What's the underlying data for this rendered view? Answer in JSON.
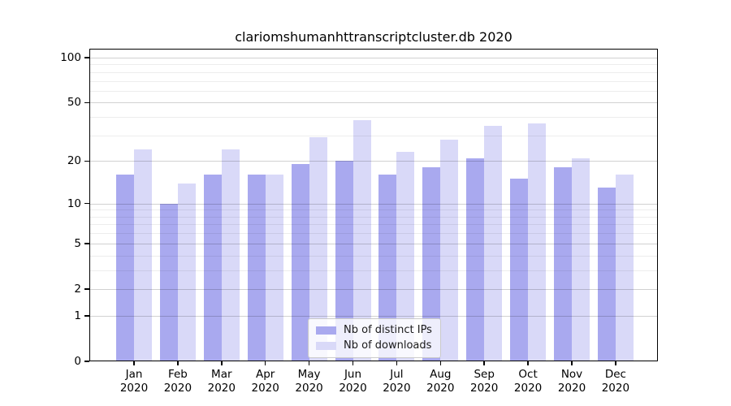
{
  "chart_data": {
    "type": "bar",
    "title": "clariomshumanhttranscriptcluster.db 2020",
    "categories": [
      "Jan 2020",
      "Feb 2020",
      "Mar 2020",
      "Apr 2020",
      "May 2020",
      "Jun 2020",
      "Jul 2020",
      "Aug 2020",
      "Sep 2020",
      "Oct 2020",
      "Nov 2020",
      "Dec 2020"
    ],
    "series": [
      {
        "name": "Nb of distinct IPs",
        "color": "#a9a9ef",
        "values": [
          16,
          10,
          16,
          16,
          19,
          20,
          16,
          18,
          21,
          15,
          18,
          13
        ]
      },
      {
        "name": "Nb of downloads",
        "color": "#d9d9f8",
        "values": [
          24,
          14,
          24,
          16,
          29,
          38,
          23,
          28,
          35,
          36,
          21,
          16
        ]
      }
    ],
    "xlabel": "",
    "ylabel": "",
    "y_scale": "log1p",
    "ylim": [
      0,
      116
    ],
    "y_ticks_major": [
      0,
      1,
      2,
      5,
      10,
      20,
      50,
      100
    ],
    "y_ticks_minor": [
      3,
      4,
      6,
      7,
      8,
      9,
      30,
      40,
      60,
      70,
      80,
      90
    ],
    "grid": "horizontal",
    "legend_position": "lower-center-inside",
    "bar_grouping": "side-by-side pairs per month"
  }
}
